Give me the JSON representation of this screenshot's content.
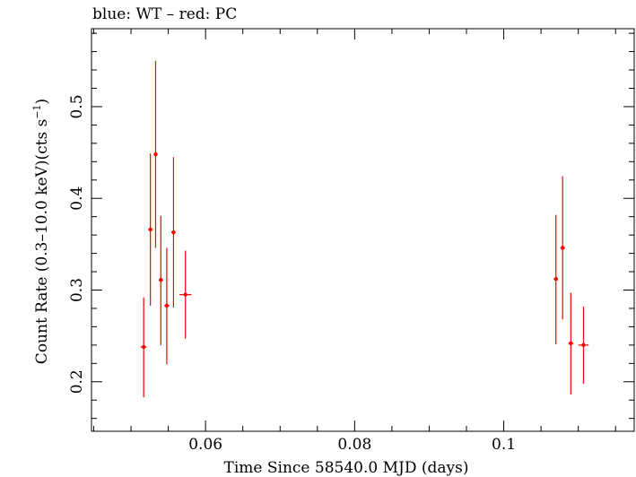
{
  "chart_data": {
    "type": "scatter",
    "title": "blue: WT – red: PC",
    "xlabel": "Time Since 58540.0 MJD (days)",
    "ylabel_main": "Count Rate (0.3–10.0 keV)(cts s",
    "ylabel_sup": "−1",
    "ylabel_close": ")",
    "xlim": [
      0.0447,
      0.1175
    ],
    "ylim": [
      0.146,
      0.585
    ],
    "x_ticks": [
      {
        "value": 0.06,
        "label": "0.06"
      },
      {
        "value": 0.08,
        "label": "0.08"
      },
      {
        "value": 0.1,
        "label": "0.1"
      }
    ],
    "y_ticks": [
      {
        "value": 0.2,
        "label": "0.2"
      },
      {
        "value": 0.3,
        "label": "0.3"
      },
      {
        "value": 0.4,
        "label": "0.4"
      },
      {
        "value": 0.5,
        "label": "0.5"
      }
    ],
    "series": [
      {
        "color": "#ff0000",
        "points": [
          {
            "x": 0.0517,
            "xerr": 0.0004,
            "y": 0.238,
            "ylo": 0.183,
            "yhi": 0.292
          },
          {
            "x": 0.0526,
            "xerr": 0.0003,
            "y": 0.366,
            "ylo": 0.283,
            "yhi": 0.449
          },
          {
            "x": 0.0533,
            "xerr": 0.00025,
            "y": 0.448,
            "ylo": 0.346,
            "yhi": 0.55
          },
          {
            "x": 0.054,
            "xerr": 0.0003,
            "y": 0.311,
            "ylo": 0.24,
            "yhi": 0.381
          },
          {
            "x": 0.0548,
            "xerr": 0.00035,
            "y": 0.283,
            "ylo": 0.219,
            "yhi": 0.346
          },
          {
            "x": 0.0557,
            "xerr": 0.0003,
            "y": 0.363,
            "ylo": 0.281,
            "yhi": 0.445
          },
          {
            "x": 0.0573,
            "xerr": 0.0008,
            "y": 0.295,
            "ylo": 0.247,
            "yhi": 0.343
          },
          {
            "x": 0.107,
            "xerr": 0.0003,
            "y": 0.312,
            "ylo": 0.241,
            "yhi": 0.382
          },
          {
            "x": 0.1079,
            "xerr": 0.0003,
            "y": 0.346,
            "ylo": 0.268,
            "yhi": 0.424
          },
          {
            "x": 0.109,
            "xerr": 0.00035,
            "y": 0.242,
            "ylo": 0.186,
            "yhi": 0.297
          },
          {
            "x": 0.1107,
            "xerr": 0.0007,
            "y": 0.24,
            "ylo": 0.198,
            "yhi": 0.282
          }
        ]
      }
    ]
  }
}
